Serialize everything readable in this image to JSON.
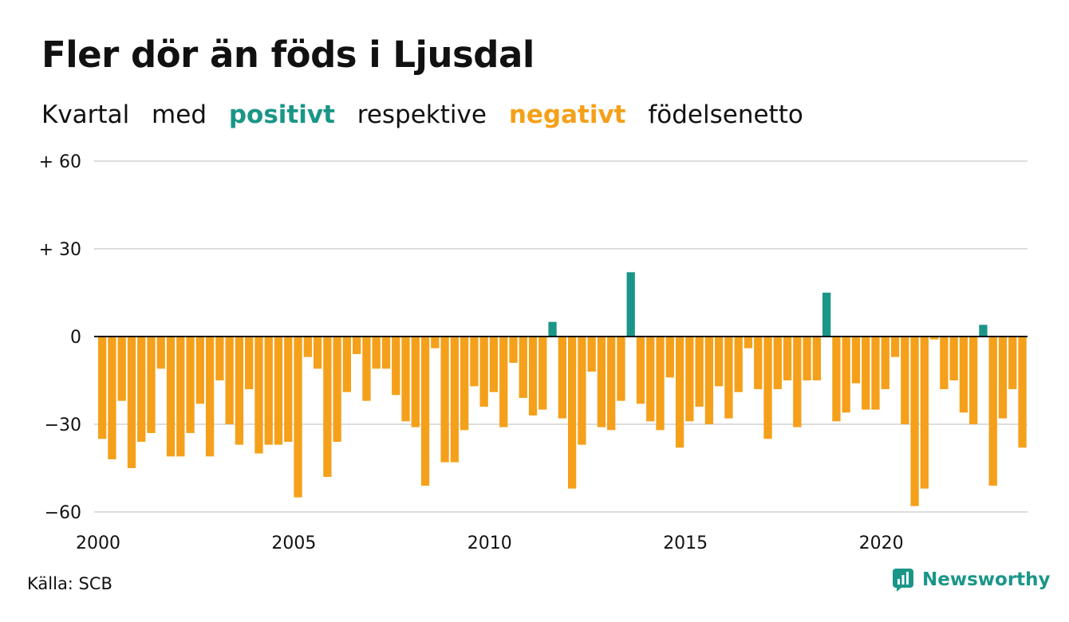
{
  "title": "Fler dör än föds i Ljusdal",
  "subtitle": {
    "part1": "Kvartal",
    "part2": "med",
    "positive_word": "positivt",
    "part3": "respektive",
    "negative_word": "negativt",
    "part4": "födelsenetto"
  },
  "colors": {
    "positive": "#1a9688",
    "negative": "#f5a01a",
    "brand": "#1a9688",
    "grid": "#dddddd",
    "zero_line": "#111111"
  },
  "source": "Källa: SCB",
  "brand": {
    "name": "Newsworthy",
    "icon": "newsworthy-logo-icon"
  },
  "chart_data": {
    "type": "bar",
    "x_start": "2000 Q1",
    "ylim": [
      -60,
      60
    ],
    "yticks": [
      {
        "value": 60,
        "label": "+ 60"
      },
      {
        "value": 30,
        "label": "+ 30"
      },
      {
        "value": 0,
        "label": "0"
      },
      {
        "value": -30,
        "label": "−30"
      },
      {
        "value": -60,
        "label": "−60"
      }
    ],
    "xticks": [
      "2000",
      "2005",
      "2010",
      "2015",
      "2020"
    ],
    "values": [
      -35,
      -42,
      -22,
      -45,
      -36,
      -33,
      -11,
      -41,
      -41,
      -33,
      -23,
      -41,
      -15,
      -30,
      -37,
      -18,
      -40,
      -37,
      -37,
      -36,
      -55,
      -7,
      -11,
      -48,
      -36,
      -19,
      -6,
      -22,
      -11,
      -11,
      -20,
      -29,
      -31,
      -51,
      -4,
      -43,
      -43,
      -32,
      -17,
      -24,
      -19,
      -31,
      -9,
      -21,
      -27,
      -25,
      5,
      -28,
      -52,
      -37,
      -12,
      -31,
      -32,
      -22,
      22,
      -23,
      -29,
      -32,
      -14,
      -38,
      -29,
      -24,
      -30,
      -17,
      -28,
      -19,
      -4,
      -18,
      -35,
      -18,
      -15,
      -31,
      -15,
      -15,
      15,
      -29,
      -26,
      -16,
      -25,
      -25,
      -18,
      -7,
      -30,
      -58,
      -52,
      -1,
      -18,
      -15,
      -26,
      -30,
      4,
      -51,
      -28,
      -18,
      -38
    ]
  }
}
